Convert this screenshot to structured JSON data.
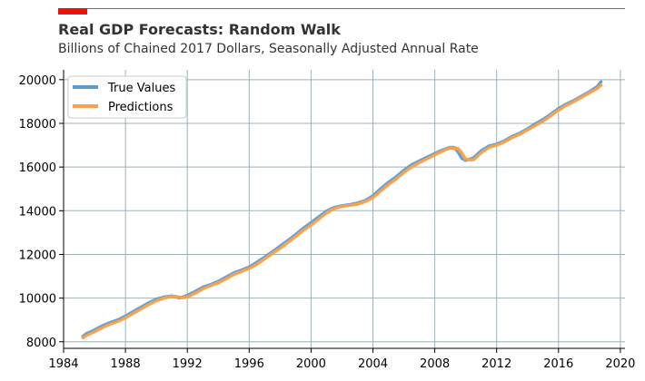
{
  "title": "Real GDP Forecasts: Random Walk",
  "subtitle": "Billions of Chained 2017 Dollars, Seasonally Adjusted Annual Rate",
  "colors": {
    "accent": "#e8140c",
    "rule": "#c0504d",
    "grid": "#9fb0b5",
    "true_series": "#5b9bd5",
    "pred_series": "#f8a14a"
  },
  "chart_data": {
    "type": "line",
    "title": "Real GDP Forecasts: Random Walk",
    "subtitle": "Billions of Chained 2017 Dollars, Seasonally Adjusted Annual Rate",
    "xlabel": "",
    "ylabel": "",
    "xlim": [
      1984,
      2020.3
    ],
    "ylim": [
      7700,
      20450
    ],
    "x_ticks": [
      1984,
      1988,
      1992,
      1996,
      2000,
      2004,
      2008,
      2012,
      2016,
      2020
    ],
    "y_ticks": [
      8000,
      10000,
      12000,
      14000,
      16000,
      18000,
      20000
    ],
    "grid": true,
    "legend_position": "top-left",
    "series": [
      {
        "name": "True Values",
        "color": "#5b9bd5",
        "x": [
          1985.25,
          1985.5,
          1986,
          1986.5,
          1987,
          1987.5,
          1988,
          1988.5,
          1989,
          1989.5,
          1990,
          1990.5,
          1991,
          1991.25,
          1991.5,
          1991.75,
          1992,
          1992.5,
          1993,
          1993.5,
          1994,
          1994.5,
          1995,
          1995.5,
          1996,
          1996.5,
          1997,
          1997.5,
          1998,
          1998.5,
          1999,
          1999.5,
          2000,
          2000.5,
          2001,
          2001.5,
          2002,
          2002.5,
          2003,
          2003.5,
          2004,
          2004.5,
          2005,
          2005.5,
          2006,
          2006.5,
          2007,
          2007.5,
          2008,
          2008.5,
          2008.75,
          2009,
          2009.25,
          2009.5,
          2009.75,
          2010,
          2010.5,
          2011,
          2011.5,
          2012,
          2012.5,
          2013,
          2013.5,
          2014,
          2014.5,
          2015,
          2015.5,
          2016,
          2016.5,
          2017,
          2017.5,
          2018,
          2018.5,
          2018.75
        ],
        "y": [
          8250,
          8380,
          8540,
          8730,
          8880,
          9000,
          9180,
          9380,
          9580,
          9780,
          9950,
          10050,
          10100,
          10060,
          10010,
          10060,
          10120,
          10300,
          10500,
          10620,
          10760,
          10960,
          11150,
          11280,
          11420,
          11640,
          11880,
          12120,
          12380,
          12640,
          12910,
          13200,
          13450,
          13720,
          13980,
          14150,
          14230,
          14280,
          14350,
          14470,
          14680,
          15000,
          15300,
          15550,
          15850,
          16100,
          16280,
          16450,
          16620,
          16780,
          16850,
          16900,
          16900,
          16700,
          16400,
          16300,
          16420,
          16750,
          16960,
          17050,
          17200,
          17400,
          17550,
          17750,
          17980,
          18180,
          18420,
          18680,
          18880,
          19050,
          19250,
          19450,
          19680,
          19900
        ]
      },
      {
        "name": "Predictions",
        "color": "#f8a14a",
        "x": [
          1985.25,
          1985.5,
          1986,
          1986.5,
          1987,
          1987.5,
          1988,
          1988.5,
          1989,
          1989.5,
          1990,
          1990.5,
          1991,
          1991.25,
          1991.5,
          1991.75,
          1992,
          1992.5,
          1993,
          1993.5,
          1994,
          1994.5,
          1995,
          1995.5,
          1996,
          1996.5,
          1997,
          1997.5,
          1998,
          1998.5,
          1999,
          1999.5,
          2000,
          2000.5,
          2001,
          2001.5,
          2002,
          2002.5,
          2003,
          2003.5,
          2004,
          2004.5,
          2005,
          2005.5,
          2006,
          2006.5,
          2007,
          2007.5,
          2008,
          2008.5,
          2008.75,
          2009,
          2009.25,
          2009.5,
          2009.75,
          2010,
          2010.5,
          2011,
          2011.5,
          2012,
          2012.5,
          2013,
          2013.5,
          2014,
          2014.5,
          2015,
          2015.5,
          2016,
          2016.5,
          2017,
          2017.5,
          2018,
          2018.5,
          2018.75
        ],
        "y": [
          8180,
          8300,
          8460,
          8650,
          8810,
          8930,
          9100,
          9300,
          9500,
          9700,
          9880,
          10000,
          10080,
          10080,
          10040,
          10020,
          10050,
          10220,
          10420,
          10570,
          10700,
          10880,
          11080,
          11220,
          11360,
          11550,
          11800,
          12040,
          12280,
          12550,
          12820,
          13100,
          13350,
          13620,
          13900,
          14100,
          14200,
          14250,
          14300,
          14420,
          14600,
          14900,
          15200,
          15450,
          15750,
          16000,
          16200,
          16380,
          16560,
          16730,
          16820,
          16870,
          16870,
          16850,
          16650,
          16350,
          16330,
          16650,
          16900,
          17000,
          17150,
          17350,
          17500,
          17700,
          17900,
          18100,
          18350,
          18600,
          18820,
          19000,
          19200,
          19400,
          19600,
          19750
        ]
      }
    ]
  }
}
